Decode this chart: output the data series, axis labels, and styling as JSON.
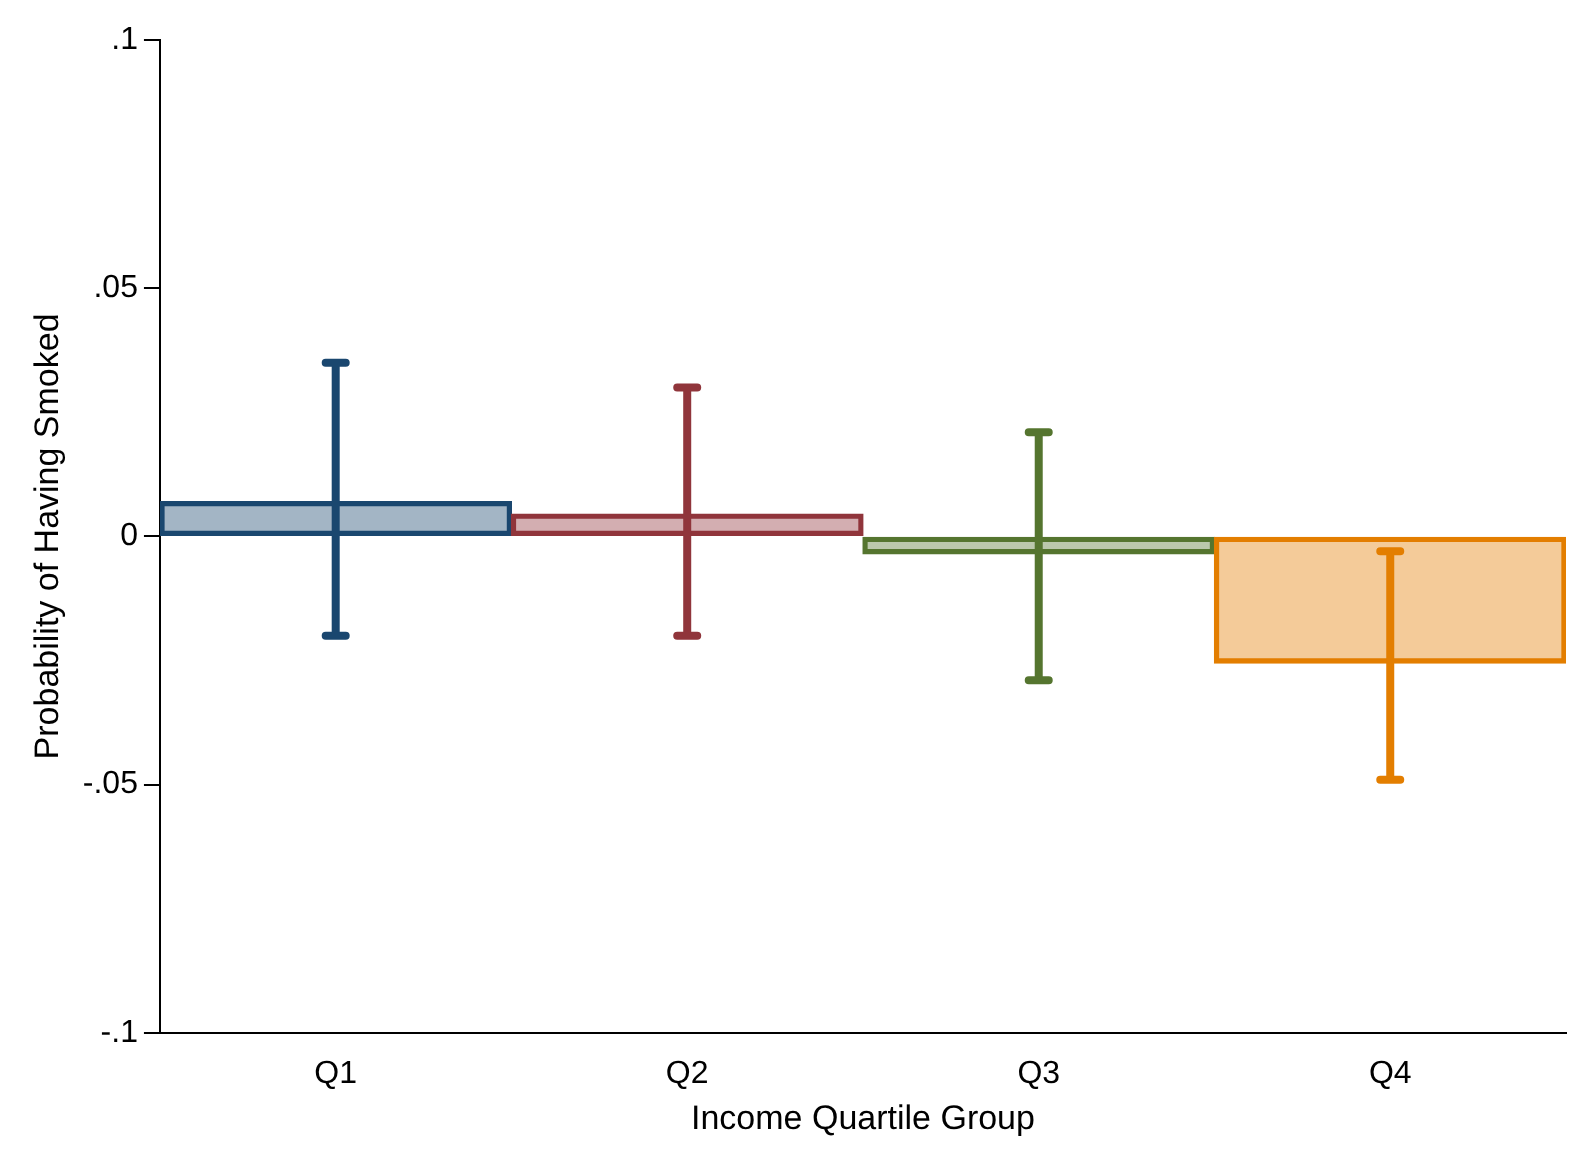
{
  "chart_data": {
    "type": "bar",
    "xlabel": "Income Quartile Group",
    "ylabel": "Probability of Having Smoked",
    "categories": [
      "Q1",
      "Q2",
      "Q3",
      "Q4"
    ],
    "values": [
      0.007,
      0.0045,
      -0.0035,
      -0.0255
    ],
    "colors": [
      "#1a476f",
      "#90353b",
      "#55752f",
      "#e37e00"
    ],
    "errors": [
      [
        -0.02,
        0.035
      ],
      [
        -0.02,
        0.03
      ],
      [
        -0.029,
        0.021
      ],
      [
        -0.049,
        -0.003
      ]
    ],
    "ylim": [
      -0.1,
      0.1
    ],
    "yticks": [
      {
        "value": -0.1,
        "label": "-.1"
      },
      {
        "value": -0.05,
        "label": "-.05"
      },
      0,
      {
        "value": 0.05,
        "label": ".05"
      },
      {
        "value": 0.1,
        "label": ".1"
      }
    ],
    "grid": false,
    "legend": false
  }
}
